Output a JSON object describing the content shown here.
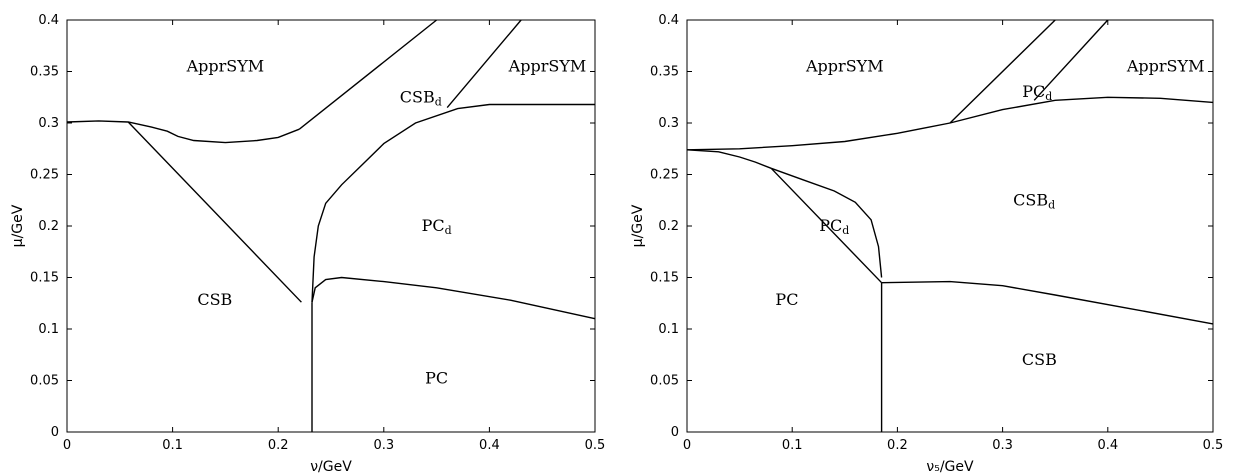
{
  "chart_data": [
    {
      "type": "phase-diagram",
      "xlabel": "ν/GeV",
      "ylabel": "μ/GeV",
      "xlim": [
        0,
        0.5
      ],
      "ylim": [
        0,
        0.4
      ],
      "xticks": [
        "0",
        "0.1",
        "0.2",
        "0.3",
        "0.4",
        "0.5"
      ],
      "yticks": [
        "0",
        "0.05",
        "0.1",
        "0.15",
        "0.2",
        "0.25",
        "0.3",
        "0.35",
        "0.4"
      ],
      "regions": [
        {
          "label": "ApprSYM",
          "sub": "",
          "x": 0.15,
          "y": 0.355
        },
        {
          "label": "ApprSYM",
          "sub": "",
          "x": 0.455,
          "y": 0.355
        },
        {
          "label": "CSB",
          "sub": "d",
          "x": 0.335,
          "y": 0.325
        },
        {
          "label": "PC",
          "sub": "d",
          "x": 0.35,
          "y": 0.2
        },
        {
          "label": "CSB",
          "sub": "",
          "x": 0.14,
          "y": 0.128
        },
        {
          "label": "PC",
          "sub": "",
          "x": 0.35,
          "y": 0.052
        }
      ],
      "curves": [
        [
          [
            0.0,
            0.301
          ],
          [
            0.03,
            0.302
          ],
          [
            0.058,
            0.301
          ],
          [
            0.08,
            0.296
          ],
          [
            0.095,
            0.292
          ],
          [
            0.105,
            0.287
          ],
          [
            0.12,
            0.283
          ],
          [
            0.15,
            0.281
          ],
          [
            0.18,
            0.283
          ],
          [
            0.2,
            0.286
          ],
          [
            0.22,
            0.294
          ]
        ],
        [
          [
            0.22,
            0.294
          ],
          [
            0.35,
            0.4
          ]
        ],
        [
          [
            0.058,
            0.301
          ],
          [
            0.222,
            0.126
          ]
        ],
        [
          [
            0.232,
            0.0
          ],
          [
            0.232,
            0.126
          ]
        ],
        [
          [
            0.232,
            0.126
          ],
          [
            0.235,
            0.14
          ],
          [
            0.245,
            0.148
          ],
          [
            0.26,
            0.15
          ],
          [
            0.3,
            0.146
          ],
          [
            0.35,
            0.14
          ],
          [
            0.42,
            0.128
          ],
          [
            0.5,
            0.11
          ]
        ],
        [
          [
            0.232,
            0.126
          ],
          [
            0.234,
            0.17
          ],
          [
            0.238,
            0.2
          ],
          [
            0.245,
            0.222
          ],
          [
            0.26,
            0.24
          ],
          [
            0.28,
            0.26
          ],
          [
            0.3,
            0.28
          ],
          [
            0.33,
            0.3
          ],
          [
            0.37,
            0.314
          ],
          [
            0.4,
            0.318
          ],
          [
            0.5,
            0.318
          ]
        ],
        [
          [
            0.36,
            0.315
          ],
          [
            0.43,
            0.4
          ]
        ]
      ]
    },
    {
      "type": "phase-diagram",
      "xlabel": "ν₅/GeV",
      "ylabel": "μ/GeV",
      "xlim": [
        0,
        0.5
      ],
      "ylim": [
        0,
        0.4
      ],
      "xticks": [
        "0",
        "0.1",
        "0.2",
        "0.3",
        "0.4",
        "0.5"
      ],
      "yticks": [
        "0",
        "0.05",
        "0.1",
        "0.15",
        "0.2",
        "0.25",
        "0.3",
        "0.35",
        "0.4"
      ],
      "regions": [
        {
          "label": "ApprSYM",
          "sub": "",
          "x": 0.15,
          "y": 0.355
        },
        {
          "label": "ApprSYM",
          "sub": "",
          "x": 0.455,
          "y": 0.355
        },
        {
          "label": "PC",
          "sub": "d",
          "x": 0.333,
          "y": 0.33
        },
        {
          "label": "CSB",
          "sub": "d",
          "x": 0.33,
          "y": 0.225
        },
        {
          "label": "PC",
          "sub": "d",
          "x": 0.14,
          "y": 0.2
        },
        {
          "label": "PC",
          "sub": "",
          "x": 0.095,
          "y": 0.128
        },
        {
          "label": "CSB",
          "sub": "",
          "x": 0.335,
          "y": 0.07
        }
      ],
      "curves": [
        [
          [
            0.0,
            0.274
          ],
          [
            0.05,
            0.275
          ],
          [
            0.1,
            0.278
          ],
          [
            0.15,
            0.282
          ],
          [
            0.2,
            0.29
          ],
          [
            0.25,
            0.3
          ],
          [
            0.3,
            0.313
          ],
          [
            0.35,
            0.322
          ],
          [
            0.4,
            0.325
          ],
          [
            0.45,
            0.324
          ],
          [
            0.5,
            0.32
          ]
        ],
        [
          [
            0.25,
            0.3
          ],
          [
            0.35,
            0.4
          ]
        ],
        [
          [
            0.33,
            0.322
          ],
          [
            0.4,
            0.4
          ]
        ],
        [
          [
            0.0,
            0.274
          ],
          [
            0.03,
            0.272
          ],
          [
            0.05,
            0.267
          ],
          [
            0.065,
            0.262
          ],
          [
            0.08,
            0.256
          ]
        ],
        [
          [
            0.08,
            0.256
          ],
          [
            0.11,
            0.245
          ],
          [
            0.14,
            0.234
          ],
          [
            0.16,
            0.223
          ],
          [
            0.175,
            0.206
          ],
          [
            0.182,
            0.18
          ],
          [
            0.185,
            0.15
          ]
        ],
        [
          [
            0.08,
            0.256
          ],
          [
            0.185,
            0.145
          ]
        ],
        [
          [
            0.185,
            0.0
          ],
          [
            0.185,
            0.145
          ]
        ],
        [
          [
            0.185,
            0.145
          ],
          [
            0.25,
            0.146
          ],
          [
            0.3,
            0.142
          ],
          [
            0.35,
            0.133
          ],
          [
            0.42,
            0.12
          ],
          [
            0.5,
            0.105
          ]
        ]
      ]
    }
  ]
}
